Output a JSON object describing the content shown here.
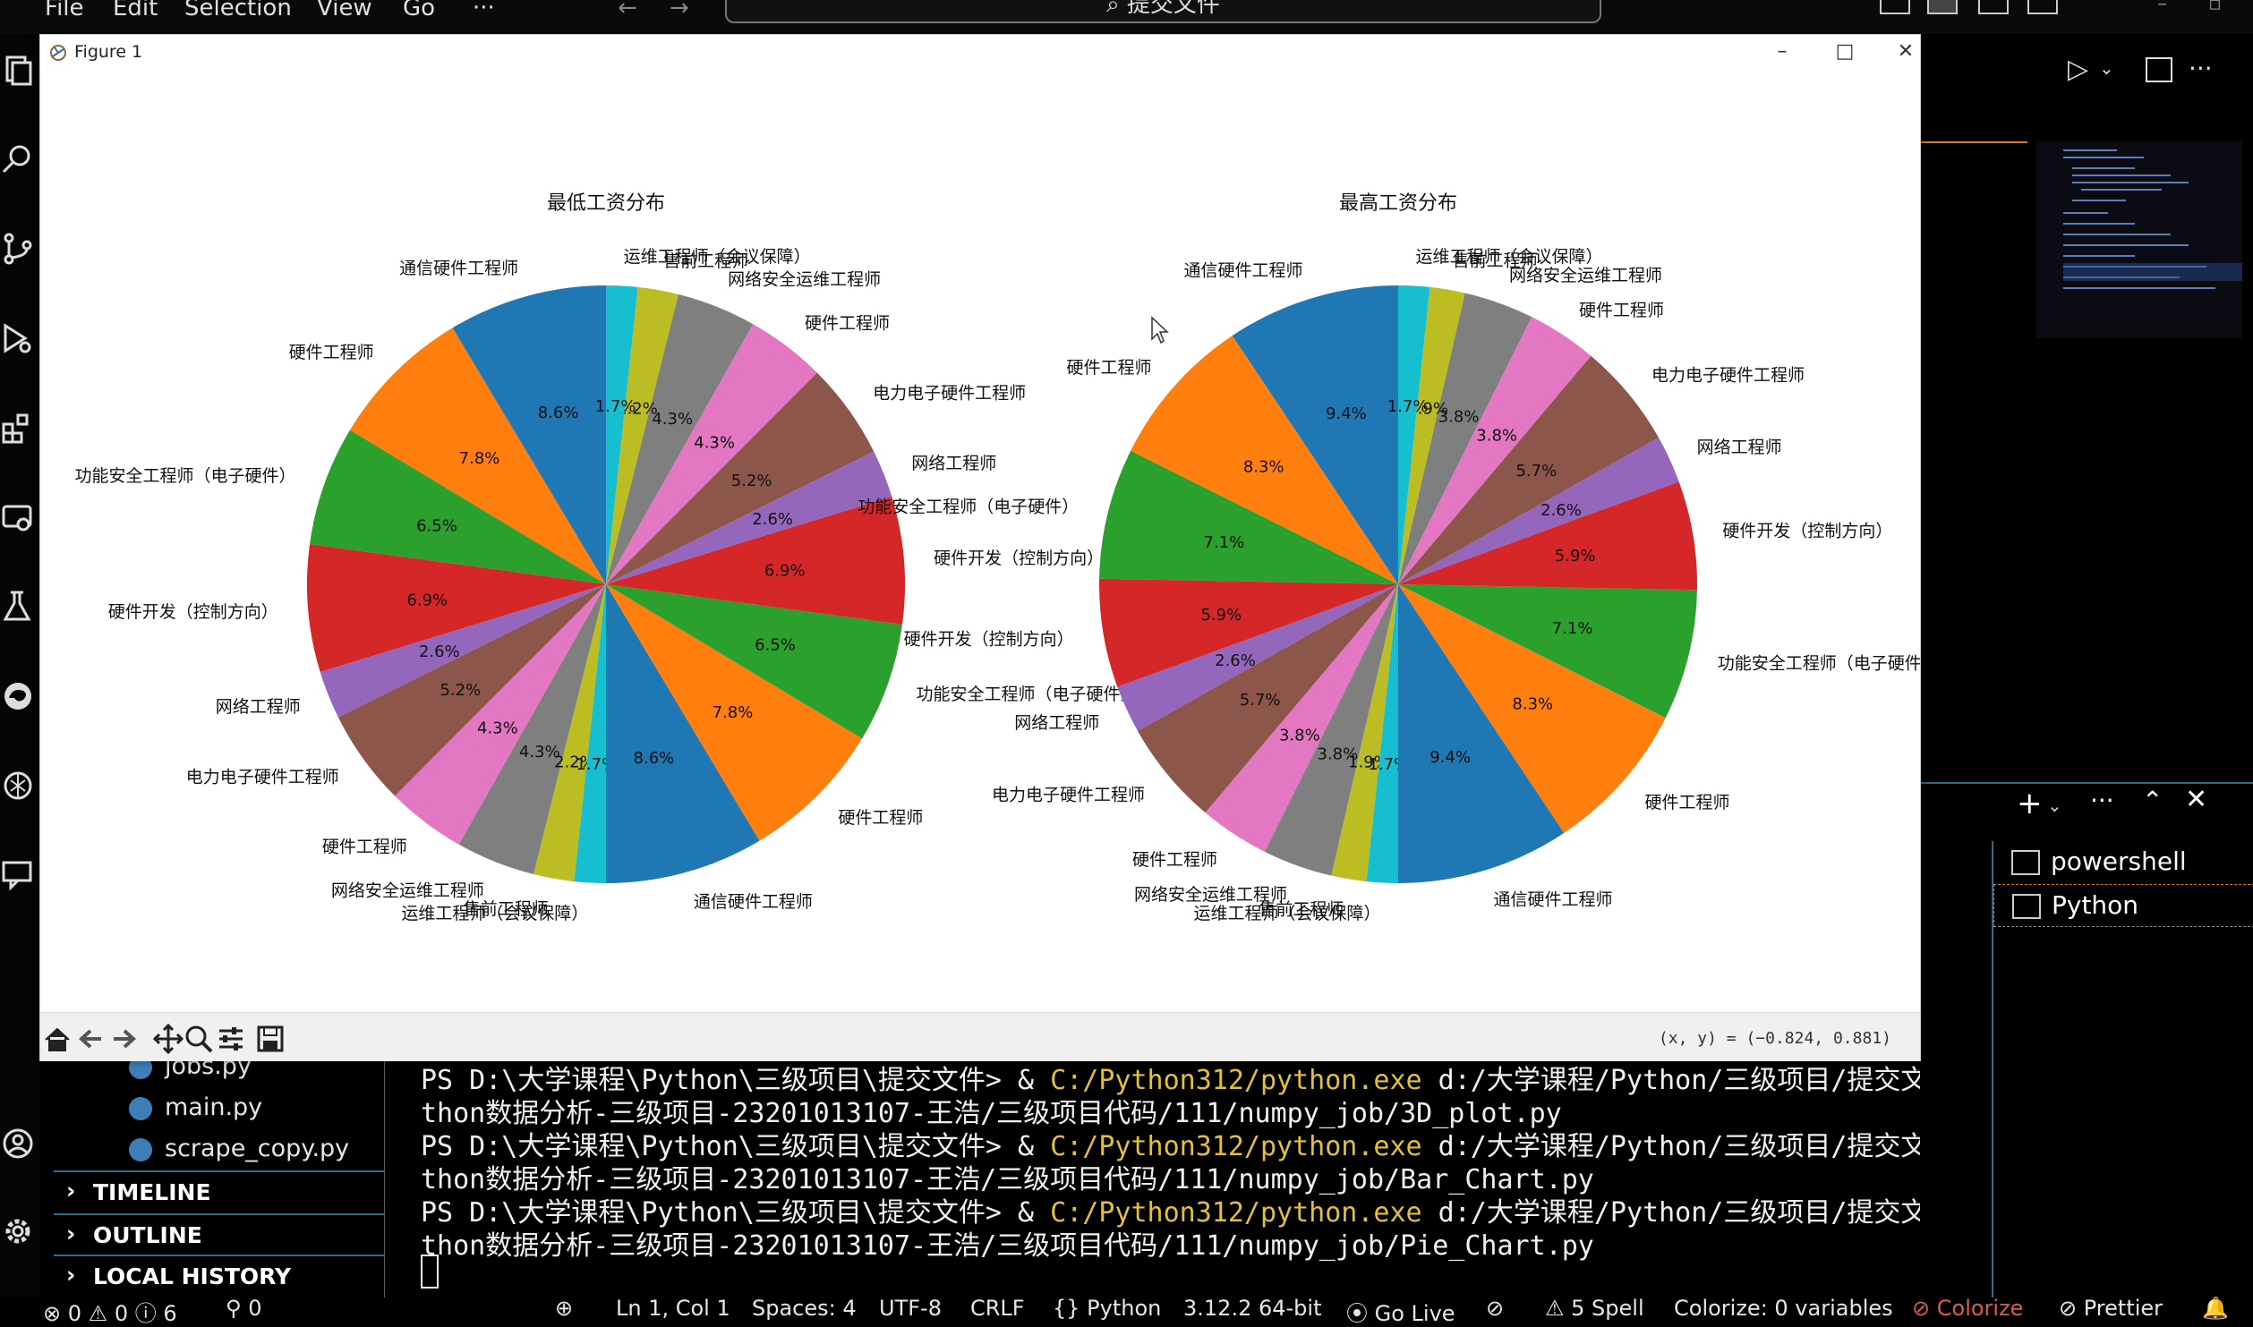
{
  "vscode": {
    "menu": [
      "File",
      "Edit",
      "Selection",
      "View",
      "Go",
      "···"
    ],
    "search_text": "提交文件",
    "sidebar_files": [
      "jobs.py",
      "main.py",
      "scrape_copy.py"
    ],
    "sections": [
      "TIMELINE",
      "OUTLINE",
      "LOCAL HISTORY"
    ],
    "terminal_lines": [
      {
        "prompt": "PS D:\\大学课程\\Python\\三级项目\\提交文件> & ",
        "exe": "C:/Python312/python.exe",
        "rest": " d:/大学课程/Python/三级项目/提交文件/Py"
      },
      {
        "text": "thon数据分析-三级项目-23201013107-王浩/三级项目代码/111/numpy_job/3D_plot.py"
      },
      {
        "prompt": "PS D:\\大学课程\\Python\\三级项目\\提交文件> & ",
        "exe": "C:/Python312/python.exe",
        "rest": " d:/大学课程/Python/三级项目/提交文件/Py"
      },
      {
        "text": "thon数据分析-三级项目-23201013107-王浩/三级项目代码/111/numpy_job/Bar_Chart.py"
      },
      {
        "prompt": "PS D:\\大学课程\\Python\\三级项目\\提交文件> & ",
        "exe": "C:/Python312/python.exe",
        "rest": " d:/大学课程/Python/三级项目/提交文件/Py"
      },
      {
        "text": "thon数据分析-三级项目-23201013107-王浩/三级项目代码/111/numpy_job/Pie_Chart.py"
      }
    ],
    "terminals": [
      "powershell",
      "Python"
    ],
    "status": {
      "errors": "0",
      "warnings": "0",
      "info": "6",
      "ports": "0",
      "position": "Ln 1, Col 1",
      "spaces": "Spaces: 4",
      "encoding": "UTF-8",
      "eol": "CRLF",
      "language": "Python",
      "interpreter": "3.12.2 64-bit",
      "golive": "Go Live",
      "spell": "5 Spell",
      "colorize": "Colorize: 0 variables",
      "colorize2": "Colorize",
      "prettier": "Prettier"
    }
  },
  "figure": {
    "title": "Figure 1",
    "coords": "(x, y) = (−0.824, 0.881)"
  },
  "chart_data": [
    {
      "type": "pie",
      "title": "最低工资分布",
      "labels": [
        "通信硬件工程师",
        "硬件工程师",
        "功能安全工程师（电子硬件）",
        "硬件开发（控制方向）",
        "网络工程师",
        "电力电子硬件工程师",
        "硬件工程师",
        "网络安全运维工程师",
        "售前工程师",
        "运维工程师（会议保障）",
        "通信硬件工程师",
        "硬件工程师",
        "功能安全工程师（电子硬件）",
        "硬件开发（控制方向）",
        "网络工程师",
        "电力电子硬件工程师",
        "硬件工程师",
        "网络安全运维工程师",
        "售前工程师",
        "运维工程师（会议保障）"
      ],
      "values": [
        8.6,
        7.8,
        6.5,
        6.9,
        2.6,
        5.2,
        4.3,
        4.3,
        2.2,
        1.7,
        8.6,
        7.8,
        6.5,
        6.9,
        2.6,
        5.2,
        4.3,
        4.3,
        2.2,
        1.7
      ],
      "pct_labels": [
        "8.6%",
        "7.8%",
        "6.5%",
        "6.9%",
        "2.6%",
        "5.2%",
        "4.3%",
        "4.3%",
        "2.2%",
        "1.7%",
        "8.6%",
        "7.8%",
        "6.5%",
        "6.9%",
        "2.6%",
        "5.2%",
        "4.3%",
        "4.3%",
        "2.2%",
        "1.7%"
      ],
      "colors": [
        "#1f77b4",
        "#ff7f0e",
        "#2ca02c",
        "#d62728",
        "#9467bd",
        "#8c564b",
        "#e377c2",
        "#7f7f7f",
        "#bcbd22",
        "#17becf",
        "#1f77b4",
        "#ff7f0e",
        "#2ca02c",
        "#d62728",
        "#9467bd",
        "#8c564b",
        "#e377c2",
        "#7f7f7f",
        "#bcbd22",
        "#17becf"
      ],
      "start_angle": 90,
      "direction": "counterclockwise"
    },
    {
      "type": "pie",
      "title": "最高工资分布",
      "labels": [
        "通信硬件工程师",
        "硬件工程师",
        "功能安全工程师（电子硬件）",
        "硬件开发（控制方向）",
        "网络工程师",
        "电力电子硬件工程师",
        "硬件工程师",
        "网络安全运维工程师",
        "售前工程师",
        "运维工程师（会议保障）",
        "通信硬件工程师",
        "硬件工程师",
        "功能安全工程师（电子硬件）",
        "硬件开发（控制方向）",
        "网络工程师",
        "电力电子硬件工程师",
        "硬件工程师",
        "网络安全运维工程师",
        "售前工程师",
        "运维工程师（会议保障）"
      ],
      "values": [
        9.4,
        8.3,
        7.1,
        5.9,
        2.6,
        5.7,
        3.8,
        3.8,
        1.9,
        1.7,
        9.4,
        8.3,
        7.1,
        5.9,
        2.6,
        5.7,
        3.8,
        3.8,
        1.9,
        1.7
      ],
      "pct_labels": [
        "9.4%",
        "8.3%",
        "7.1%",
        "5.9%",
        "2.6%",
        "5.7%",
        "3.8%",
        "3.8%",
        "1.9%",
        "1.7%",
        "9.4%",
        "8.3%",
        "7.1%",
        "5.9%",
        "2.6%",
        "5.7%",
        "3.8%",
        "3.8%",
        "1.9%",
        "1.7%"
      ],
      "colors": [
        "#1f77b4",
        "#ff7f0e",
        "#2ca02c",
        "#d62728",
        "#9467bd",
        "#8c564b",
        "#e377c2",
        "#7f7f7f",
        "#bcbd22",
        "#17becf",
        "#1f77b4",
        "#ff7f0e",
        "#2ca02c",
        "#d62728",
        "#9467bd",
        "#8c564b",
        "#e377c2",
        "#7f7f7f",
        "#bcbd22",
        "#17becf"
      ],
      "start_angle": 90,
      "direction": "counterclockwise"
    }
  ]
}
